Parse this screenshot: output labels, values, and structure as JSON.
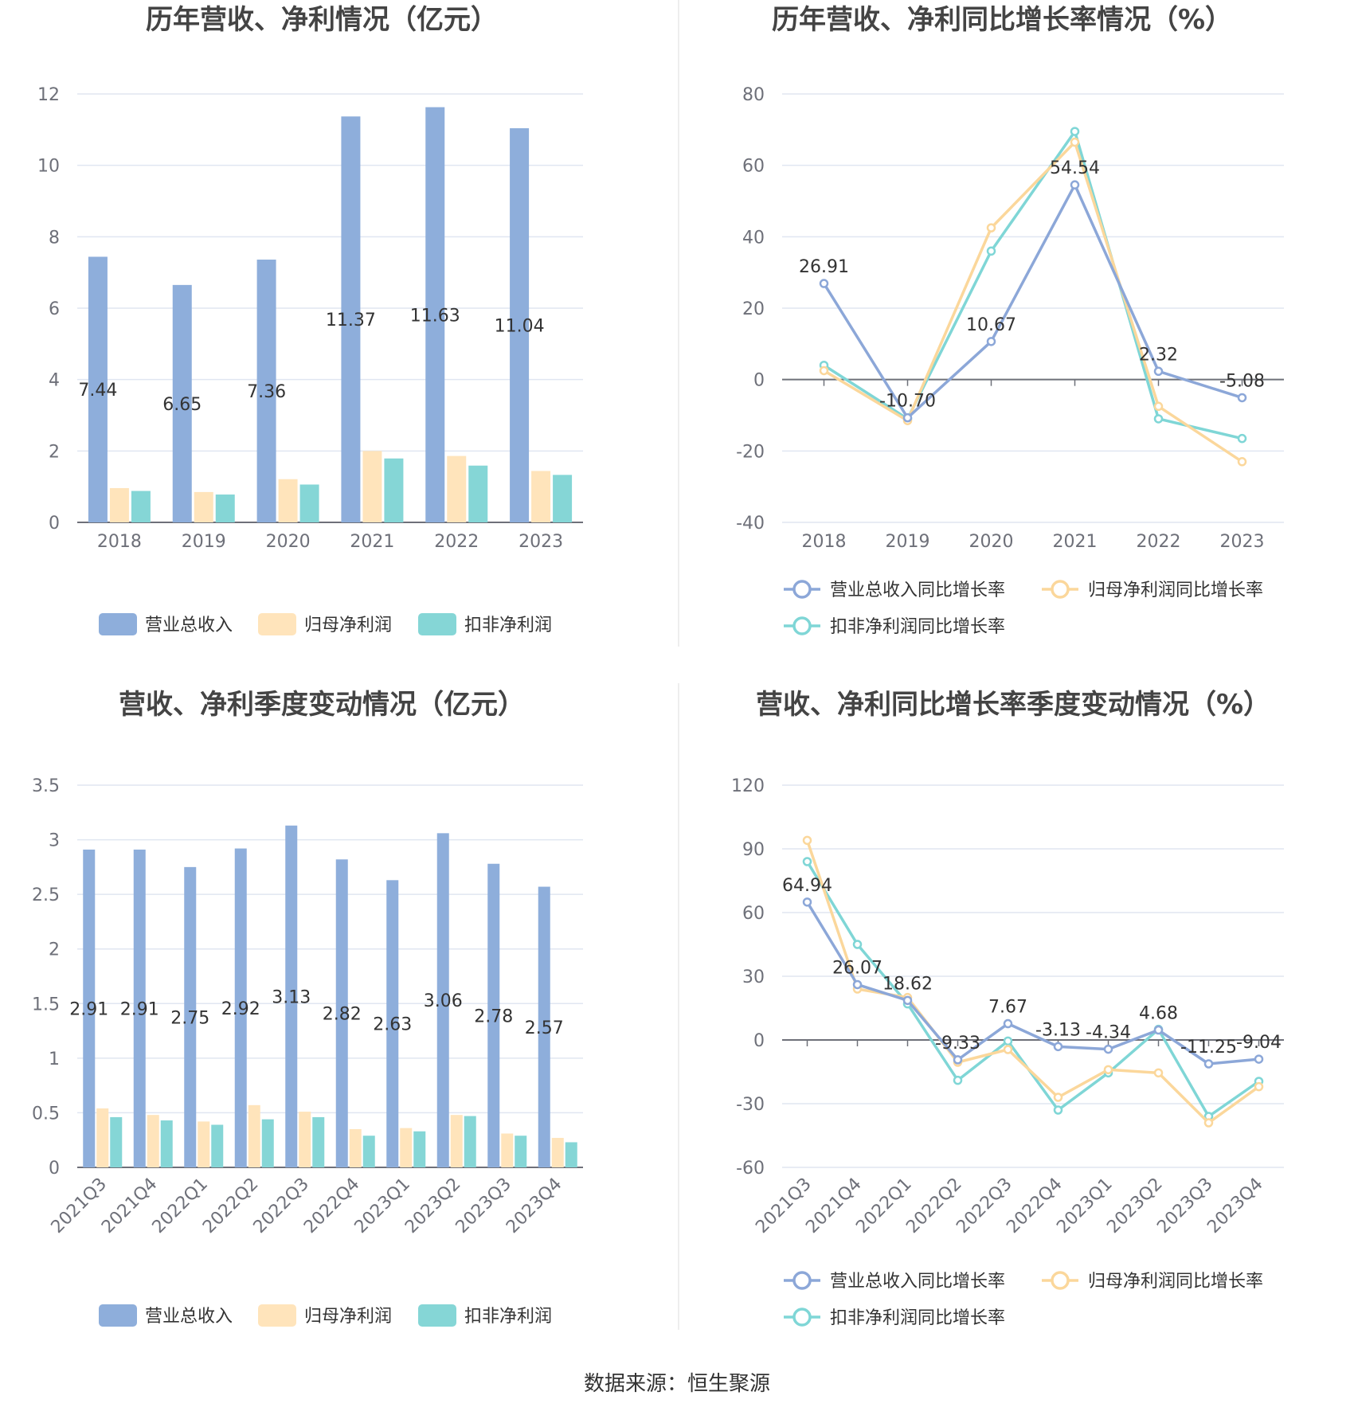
{
  "colors": {
    "revenue": "#8eaedb",
    "net_profit": "#ffe4bb",
    "deducted_profit": "#85d6d6",
    "revenue_line": "#8ca7d8",
    "net_line": "#fbd79b",
    "deducted_line": "#7fd6d6"
  },
  "source": "数据来源：恒生聚源",
  "chart_data": [
    {
      "type": "bar",
      "title": "历年营收、净利情况（亿元）",
      "categories": [
        "2018",
        "2019",
        "2020",
        "2021",
        "2022",
        "2023"
      ],
      "ylim": [
        0,
        12
      ],
      "yticks": [
        0,
        2,
        4,
        6,
        8,
        10,
        12
      ],
      "grid": true,
      "legend_position": "bottom",
      "series": [
        {
          "name": "营业总收入",
          "values": [
            7.44,
            6.65,
            7.36,
            11.37,
            11.63,
            11.04
          ],
          "labels": [
            "7.44",
            "6.65",
            "7.36",
            "11.37",
            "11.63",
            "11.04"
          ]
        },
        {
          "name": "归母净利润",
          "values": [
            0.96,
            0.85,
            1.21,
            2.0,
            1.86,
            1.44
          ]
        },
        {
          "name": "扣非净利润",
          "values": [
            0.88,
            0.78,
            1.06,
            1.79,
            1.59,
            1.33
          ]
        }
      ]
    },
    {
      "type": "line",
      "title": "历年营收、净利同比增长率情况（%）",
      "categories": [
        "2018",
        "2019",
        "2020",
        "2021",
        "2022",
        "2023"
      ],
      "ylim": [
        -40,
        80
      ],
      "yticks": [
        -40,
        -20,
        0,
        20,
        40,
        60,
        80
      ],
      "grid": true,
      "legend_position": "bottom",
      "series": [
        {
          "name": "营业总收入同比增长率",
          "values": [
            26.91,
            -10.7,
            10.67,
            54.54,
            2.32,
            -5.08
          ],
          "labels": [
            "26.91",
            "-10.70",
            "10.67",
            "54.54",
            "2.32",
            "-5.08"
          ]
        },
        {
          "name": "归母净利润同比增长率",
          "values": [
            2.5,
            -11.5,
            42.5,
            66.5,
            -7.5,
            -23.0
          ]
        },
        {
          "name": "扣非净利润同比增长率",
          "values": [
            4.0,
            -11.0,
            36.0,
            69.5,
            -11.0,
            -16.5
          ]
        }
      ]
    },
    {
      "type": "bar",
      "title": "营收、净利季度变动情况（亿元）",
      "categories": [
        "2021Q3",
        "2021Q4",
        "2022Q1",
        "2022Q2",
        "2022Q3",
        "2022Q4",
        "2023Q1",
        "2023Q2",
        "2023Q3",
        "2023Q4"
      ],
      "ylim": [
        0,
        3.5
      ],
      "yticks": [
        0,
        0.5,
        1,
        1.5,
        2,
        2.5,
        3,
        3.5
      ],
      "grid": true,
      "legend_position": "bottom",
      "series": [
        {
          "name": "营业总收入",
          "values": [
            2.91,
            2.91,
            2.75,
            2.92,
            3.13,
            2.82,
            2.63,
            3.06,
            2.78,
            2.57
          ],
          "labels": [
            "2.91",
            "2.91",
            "2.75",
            "2.92",
            "3.13",
            "2.82",
            "2.63",
            "3.06",
            "2.78",
            "2.57"
          ]
        },
        {
          "name": "归母净利润",
          "values": [
            0.54,
            0.48,
            0.42,
            0.57,
            0.51,
            0.35,
            0.36,
            0.48,
            0.31,
            0.27
          ]
        },
        {
          "name": "扣非净利润",
          "values": [
            0.46,
            0.43,
            0.39,
            0.44,
            0.46,
            0.29,
            0.33,
            0.47,
            0.29,
            0.23
          ]
        }
      ]
    },
    {
      "type": "line",
      "title": "营收、净利同比增长率季度变动情况（%）",
      "categories": [
        "2021Q3",
        "2021Q4",
        "2022Q1",
        "2022Q2",
        "2022Q3",
        "2022Q4",
        "2023Q1",
        "2023Q2",
        "2023Q3",
        "2023Q4"
      ],
      "ylim": [
        -60,
        120
      ],
      "yticks": [
        -60,
        -30,
        0,
        30,
        60,
        90,
        120
      ],
      "grid": true,
      "legend_position": "bottom",
      "series": [
        {
          "name": "营业总收入同比增长率",
          "values": [
            64.94,
            26.07,
            18.62,
            -9.33,
            7.67,
            -3.13,
            -4.34,
            4.68,
            -11.25,
            -9.04
          ],
          "labels": [
            "64.94",
            "26.07",
            "18.62",
            "-9.33",
            "7.67",
            "-3.13",
            "-4.34",
            "4.68",
            "-11.25",
            "-9.04"
          ]
        },
        {
          "name": "归母净利润同比增长率",
          "values": [
            94,
            24,
            20,
            -10.5,
            -4.5,
            -27,
            -14,
            -15.5,
            -39,
            -22
          ]
        },
        {
          "name": "扣非净利润同比增长率",
          "values": [
            84,
            45,
            17,
            -19,
            -0.5,
            -33,
            -15.5,
            5,
            -36,
            -19.5
          ]
        }
      ]
    }
  ]
}
